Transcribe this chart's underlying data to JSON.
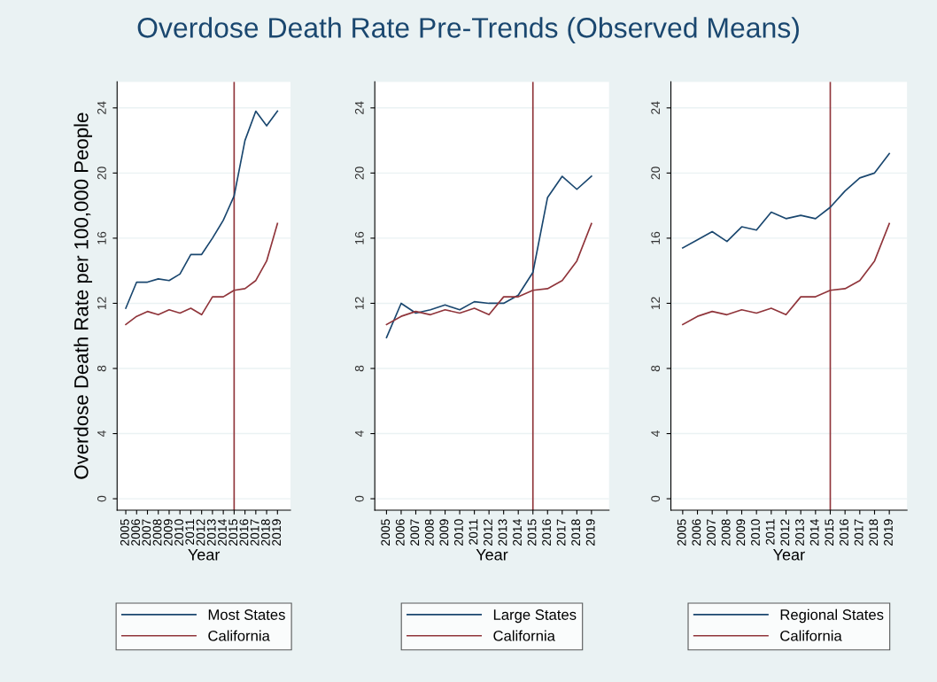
{
  "chart_data": [
    {
      "type": "line",
      "title": "Overdose Death Rate Pre-Trends (Observed Means)",
      "xlabel": "Year",
      "ylabel": "Overdose Death Rate per 100,000 People",
      "x": [
        2005,
        2006,
        2007,
        2008,
        2009,
        2010,
        2011,
        2012,
        2013,
        2014,
        2015,
        2016,
        2017,
        2018,
        2019
      ],
      "series": [
        {
          "name": "Most States",
          "color": "#1a476f",
          "values": [
            11.7,
            13.3,
            13.3,
            13.5,
            13.4,
            13.8,
            15.0,
            15.0,
            16.0,
            17.1,
            18.6,
            22.0,
            23.8,
            22.9,
            23.8
          ]
        },
        {
          "name": "California",
          "color": "#90353b",
          "values": [
            10.7,
            11.2,
            11.5,
            11.3,
            11.6,
            11.4,
            11.7,
            11.3,
            12.4,
            12.4,
            12.8,
            12.9,
            13.4,
            14.6,
            16.9
          ]
        }
      ],
      "xlim": [
        2004.2,
        2020.2
      ],
      "xticks": [
        2005,
        2006,
        2007,
        2008,
        2009,
        2010,
        2011,
        2012,
        2013,
        2014,
        2015,
        2016,
        2017,
        2018,
        2019
      ],
      "ylim": [
        -0.7,
        25.6
      ],
      "yticks": [
        0,
        4,
        8,
        12,
        16,
        20,
        24
      ],
      "grid": "y",
      "legend": "bottom",
      "ref_lines": [
        {
          "axis": "x",
          "value": 2015,
          "color": "#90353b"
        }
      ]
    },
    {
      "type": "line",
      "xlabel": "Year",
      "x": [
        2005,
        2006,
        2007,
        2008,
        2009,
        2010,
        2011,
        2012,
        2013,
        2014,
        2015,
        2016,
        2017,
        2018,
        2019
      ],
      "series": [
        {
          "name": "Large States",
          "color": "#1a476f",
          "values": [
            9.9,
            12.0,
            11.4,
            11.6,
            11.9,
            11.6,
            12.1,
            12.0,
            12.0,
            12.5,
            13.9,
            18.5,
            19.8,
            19.0,
            19.8
          ]
        },
        {
          "name": "California",
          "color": "#90353b",
          "values": [
            10.7,
            11.2,
            11.5,
            11.3,
            11.6,
            11.4,
            11.7,
            11.3,
            12.4,
            12.4,
            12.8,
            12.9,
            13.4,
            14.6,
            16.9
          ]
        }
      ],
      "xlim": [
        2004.2,
        2020.2
      ],
      "xticks": [
        2005,
        2006,
        2007,
        2008,
        2009,
        2010,
        2011,
        2012,
        2013,
        2014,
        2015,
        2016,
        2017,
        2018,
        2019
      ],
      "ylim": [
        -0.7,
        25.6
      ],
      "yticks": [
        0,
        4,
        8,
        12,
        16,
        20,
        24
      ],
      "grid": "y",
      "legend": "bottom",
      "ref_lines": [
        {
          "axis": "x",
          "value": 2015,
          "color": "#90353b"
        }
      ]
    },
    {
      "type": "line",
      "xlabel": "Year",
      "x": [
        2005,
        2006,
        2007,
        2008,
        2009,
        2010,
        2011,
        2012,
        2013,
        2014,
        2015,
        2016,
        2017,
        2018,
        2019
      ],
      "series": [
        {
          "name": "Regional States",
          "color": "#1a476f",
          "values": [
            15.4,
            15.9,
            16.4,
            15.8,
            16.7,
            16.5,
            17.6,
            17.2,
            17.4,
            17.2,
            17.9,
            18.9,
            19.7,
            20.0,
            21.2
          ]
        },
        {
          "name": "California",
          "color": "#90353b",
          "values": [
            10.7,
            11.2,
            11.5,
            11.3,
            11.6,
            11.4,
            11.7,
            11.3,
            12.4,
            12.4,
            12.8,
            12.9,
            13.4,
            14.6,
            16.9
          ]
        }
      ],
      "xlim": [
        2004.2,
        2020.2
      ],
      "xticks": [
        2005,
        2006,
        2007,
        2008,
        2009,
        2010,
        2011,
        2012,
        2013,
        2014,
        2015,
        2016,
        2017,
        2018,
        2019
      ],
      "ylim": [
        -0.7,
        25.6
      ],
      "yticks": [
        0,
        4,
        8,
        12,
        16,
        20,
        24
      ],
      "grid": "y",
      "legend": "bottom",
      "ref_lines": [
        {
          "axis": "x",
          "value": 2015,
          "color": "#90353b"
        }
      ]
    }
  ]
}
